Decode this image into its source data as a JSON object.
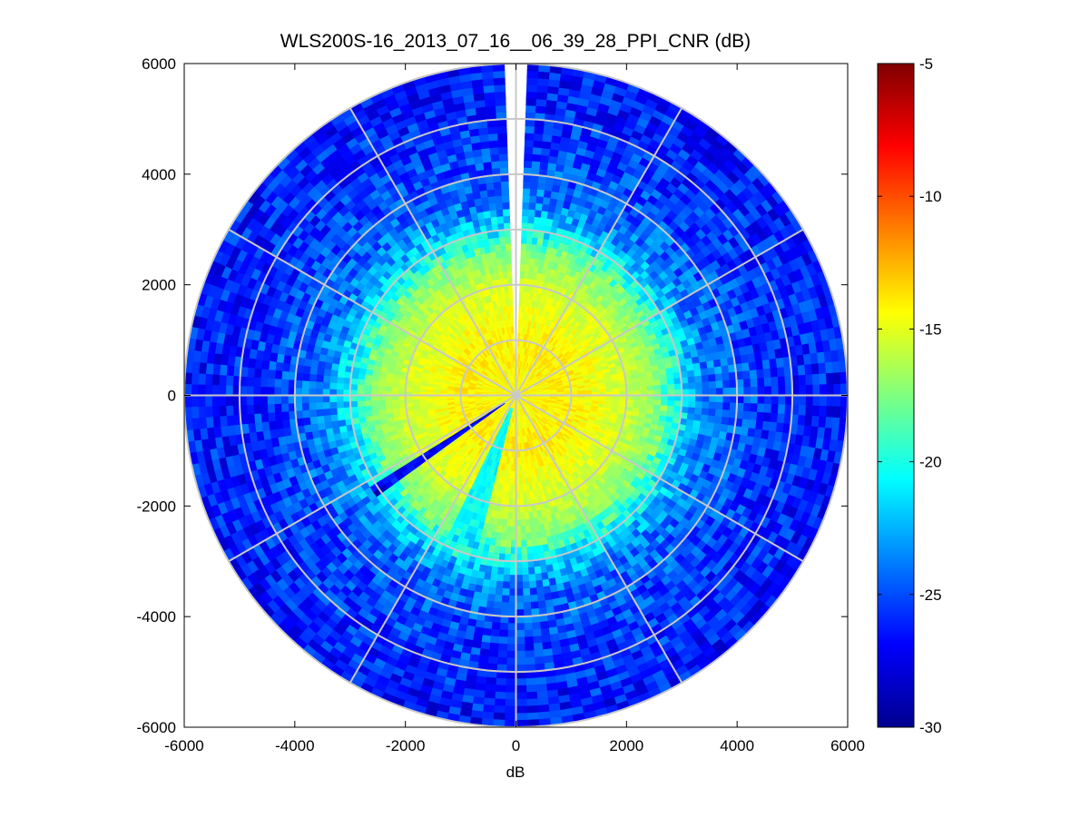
{
  "chart_data": {
    "type": "heatmap",
    "subtype": "polar-ppi",
    "title": "WLS200S-16_2013_07_16__06_39_28_PPI_CNR (dB)",
    "xlabel": "dB",
    "ylabel": "",
    "xlim": [
      -6000,
      6000
    ],
    "ylim": [
      -6000,
      6000
    ],
    "xticks": [
      -6000,
      -4000,
      -2000,
      0,
      2000,
      4000,
      6000
    ],
    "yticks": [
      6000,
      4000,
      2000,
      0,
      -2000,
      -4000,
      -6000
    ],
    "xtick_labels": [
      "-6000",
      "-4000",
      "-2000",
      "0",
      "2000",
      "4000",
      "6000"
    ],
    "ytick_labels": [
      "6000",
      "4000",
      "2000",
      "0",
      "-2000",
      "-4000",
      "-6000"
    ],
    "colorbar": {
      "colormap": "jet",
      "range": [
        -30,
        -5
      ],
      "ticks": [
        -5,
        -10,
        -15,
        -20,
        -25,
        -30
      ],
      "tick_labels": [
        "-5",
        "-10",
        "-15",
        "-20",
        "-25",
        "-30"
      ]
    },
    "grid": "polar",
    "polar_rings": [
      1000,
      2000,
      3000,
      4000,
      5000,
      6000
    ],
    "polar_spokes_deg": [
      0,
      30,
      60,
      90,
      120,
      150,
      180,
      210,
      240,
      270,
      300,
      330
    ],
    "data_extent_range": 6000,
    "profile": [
      {
        "range": 0,
        "cnr": -14.5
      },
      {
        "range": 1000,
        "cnr": -14.0
      },
      {
        "range": 2000,
        "cnr": -15.5
      },
      {
        "range": 2600,
        "cnr": -17.5
      },
      {
        "range": 3000,
        "cnr": -21.0
      },
      {
        "range": 3500,
        "cnr": -24.0
      },
      {
        "range": 4500,
        "cnr": -25.5
      },
      {
        "range": 6000,
        "cnr": -26.5
      }
    ],
    "sector_anomalies": [
      {
        "azimuth_deg": 0,
        "width_deg": 2,
        "note": "no data"
      },
      {
        "azimuth_deg": 236,
        "width_deg": 2,
        "cnr": -27
      },
      {
        "azimuth_deg": 200,
        "width_deg": 10,
        "cnr": -20.5
      }
    ]
  }
}
